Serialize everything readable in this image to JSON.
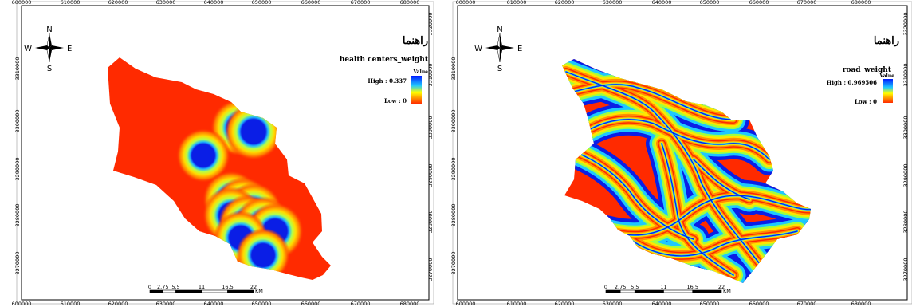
{
  "maps": [
    {
      "name": "health-centers-map",
      "legend": {
        "heading": "راهنما",
        "layer": "health centers_weight",
        "value_label": "Value",
        "high": "High : 0.337",
        "low": "Low : 0"
      },
      "x_ticks": [
        "600000",
        "610000",
        "620000",
        "630000",
        "640000",
        "650000",
        "660000",
        "670000",
        "680000"
      ],
      "y_ticks": [
        "3310000",
        "3300000",
        "3290000",
        "3280000",
        "3270000"
      ],
      "y_ticks_right": [
        "3320000"
      ],
      "scale": {
        "labels": [
          "0",
          "2.75",
          "5.5",
          "11",
          "16.5",
          "22"
        ],
        "unit": "KM"
      },
      "north_arrow": {
        "n": "N",
        "s": "S",
        "e": "E",
        "w": "W"
      }
    },
    {
      "name": "road-weight-map",
      "legend": {
        "heading": "راهنما",
        "layer": "road_weight",
        "value_label": "Value",
        "high": "High : 0.969506",
        "low": "Low : 0"
      },
      "x_ticks": [
        "600000",
        "610000",
        "620000",
        "630000",
        "640000",
        "650000",
        "660000",
        "670000",
        "680000"
      ],
      "y_ticks": [
        "3310000",
        "3300000",
        "3290000",
        "3280000",
        "3270000"
      ],
      "y_ticks_right": [
        "3320000"
      ],
      "scale": {
        "labels": [
          "0",
          "2.75",
          "5.5",
          "11",
          "16.5",
          "22"
        ],
        "unit": "KM"
      },
      "north_arrow": {
        "n": "N",
        "s": "S",
        "e": "E",
        "w": "W"
      }
    }
  ],
  "colors": {
    "ramp_high": "#0019ff",
    "ramp_mid1": "#1ec8ff",
    "ramp_mid2": "#ffff00",
    "ramp_low": "#ff2a00"
  }
}
